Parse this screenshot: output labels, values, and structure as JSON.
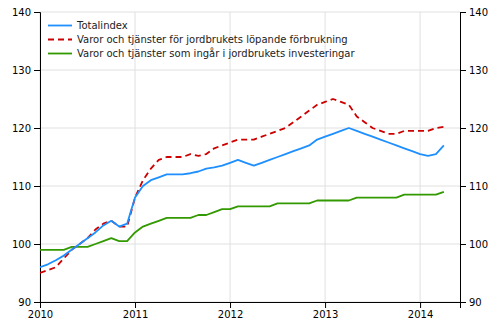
{
  "chart_data": {
    "type": "line",
    "x": [
      2010.0,
      2010.083333,
      2010.166666,
      2010.249999,
      2010.333332,
      2010.416665,
      2010.499998,
      2010.583331,
      2010.666664,
      2010.749997,
      2010.83333,
      2010.916663,
      2010.999996,
      2011.083329,
      2011.166662,
      2011.249995,
      2011.333328,
      2011.416661,
      2011.499994,
      2011.583327,
      2011.66666,
      2011.749993,
      2011.833326,
      2011.916659,
      2011.999992,
      2012.083325,
      2012.166658,
      2012.249991,
      2012.333324,
      2012.416657,
      2012.49999,
      2012.583323,
      2012.666656,
      2012.749989,
      2012.833322,
      2012.916655,
      2012.999988,
      2013.083321,
      2013.166654,
      2013.249987,
      2013.33332,
      2013.416653,
      2013.499986,
      2013.583319,
      2013.666652,
      2013.749985,
      2013.833318,
      2013.916651,
      2013.999984,
      2014.083317,
      2014.16665,
      2014.249983
    ],
    "series": [
      {
        "name": "Totalindex",
        "color": "#1e8fff",
        "line_style": "solid",
        "values": [
          96.0,
          96.5,
          97.2,
          98.0,
          99.0,
          100.0,
          101.0,
          102.0,
          103.2,
          104.0,
          103.0,
          103.5,
          108.0,
          110.0,
          111.0,
          111.5,
          112.0,
          112.0,
          112.0,
          112.2,
          112.5,
          113.0,
          113.2,
          113.5,
          114.0,
          114.5,
          114.0,
          113.5,
          114.0,
          114.5,
          115.0,
          115.5,
          116.0,
          116.5,
          117.0,
          118.0,
          118.5,
          119.0,
          119.5,
          120.0,
          119.5,
          119.0,
          118.5,
          118.0,
          117.5,
          117.0,
          116.5,
          116.0,
          115.5,
          115.2,
          115.5,
          117.0
        ]
      },
      {
        "name": "Varor och tjänster för jordbrukets löpande förbrukning",
        "color": "#cc0000",
        "line_style": "dashed",
        "values": [
          95.0,
          95.5,
          96.0,
          97.5,
          99.0,
          100.0,
          101.0,
          102.5,
          103.5,
          104.0,
          103.0,
          103.0,
          108.0,
          111.0,
          113.0,
          114.5,
          115.0,
          115.0,
          115.0,
          115.5,
          115.2,
          115.5,
          116.5,
          117.0,
          117.5,
          118.0,
          118.0,
          118.0,
          118.5,
          119.0,
          119.5,
          120.0,
          121.0,
          122.0,
          123.0,
          124.0,
          124.5,
          125.0,
          124.5,
          124.0,
          122.0,
          121.0,
          120.0,
          119.5,
          119.0,
          119.0,
          119.5,
          119.5,
          119.5,
          119.5,
          120.0,
          120.2
        ]
      },
      {
        "name": "Varor och tjänster som ingår i jordbrukets investeringar",
        "color": "#339900",
        "line_style": "solid",
        "values": [
          99.0,
          99.0,
          99.0,
          99.0,
          99.5,
          99.5,
          99.5,
          100.0,
          100.5,
          101.0,
          100.5,
          100.5,
          102.0,
          103.0,
          103.5,
          104.0,
          104.5,
          104.5,
          104.5,
          104.5,
          105.0,
          105.0,
          105.5,
          106.0,
          106.0,
          106.5,
          106.5,
          106.5,
          106.5,
          106.5,
          107.0,
          107.0,
          107.0,
          107.0,
          107.0,
          107.5,
          107.5,
          107.5,
          107.5,
          107.5,
          108.0,
          108.0,
          108.0,
          108.0,
          108.0,
          108.0,
          108.5,
          108.5,
          108.5,
          108.5,
          108.5,
          109.0
        ]
      }
    ],
    "xlim": [
      2010.0,
      2014.42
    ],
    "xticks": [
      2010,
      2011,
      2012,
      2013,
      2014
    ],
    "ylim": [
      90,
      140
    ],
    "yticks": [
      90,
      100,
      110,
      120,
      130,
      140
    ],
    "y2lim": [
      90,
      140
    ],
    "y2ticks": [
      90,
      100,
      110,
      120,
      130,
      140
    ],
    "grid": true,
    "legend": "upper left"
  }
}
